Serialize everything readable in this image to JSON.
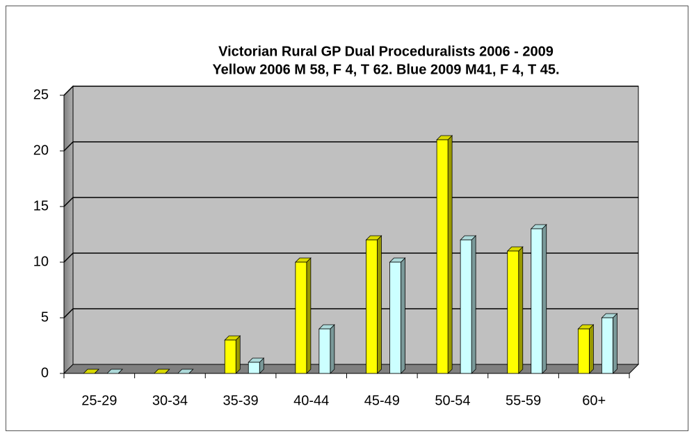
{
  "chart_data": {
    "type": "bar3d",
    "title": "Victorian Rural GP Dual Proceduralists 2006 - 2009",
    "subtitle": "Yellow 2006 M 58, F 4, T 62.   Blue 2009 M41, F 4, T 45.",
    "categories": [
      "25-29",
      "30-34",
      "35-39",
      "40-44",
      "45-49",
      "50-54",
      "55-59",
      "60+"
    ],
    "series": [
      {
        "color": "#ffff00",
        "values": [
          0,
          0,
          3,
          10,
          12,
          21,
          11,
          4
        ]
      },
      {
        "color": "#ccffff",
        "values": [
          0,
          0,
          1,
          4,
          10,
          12,
          13,
          5
        ]
      }
    ],
    "ylim": [
      0,
      25
    ],
    "yticks": [
      0,
      5,
      10,
      15,
      20,
      25
    ],
    "grid": true
  }
}
